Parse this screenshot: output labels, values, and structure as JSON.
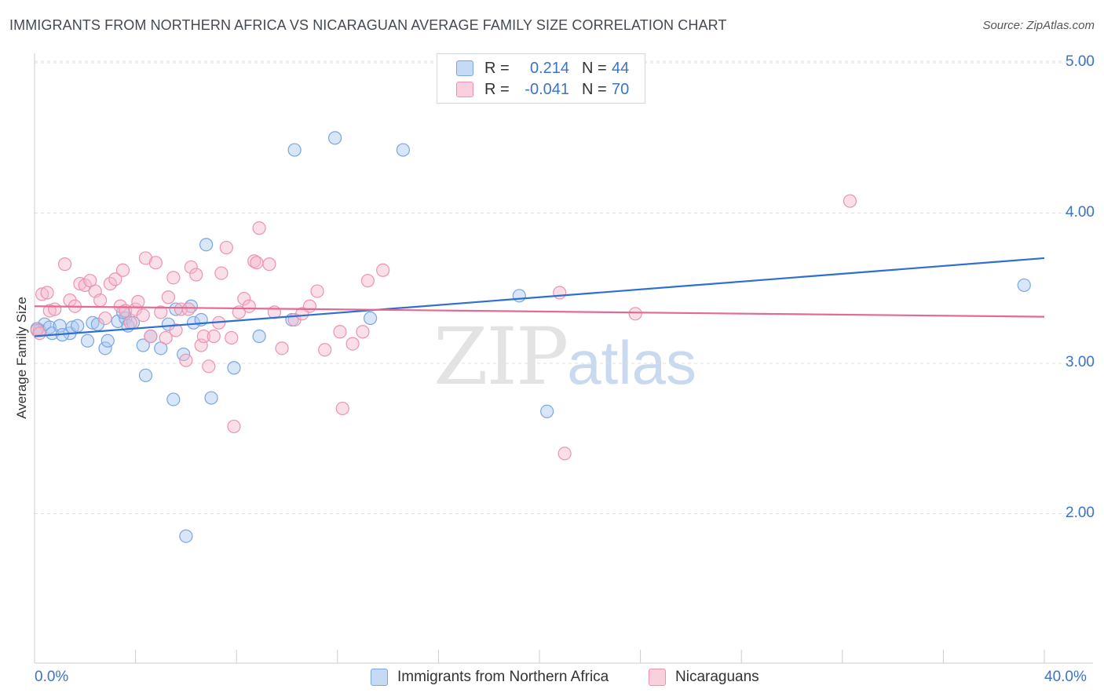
{
  "header": {
    "title": "IMMIGRANTS FROM NORTHERN AFRICA VS NICARAGUAN AVERAGE FAMILY SIZE CORRELATION CHART",
    "source": "Source: ZipAtlas.com"
  },
  "watermark": {
    "zip": "ZIP",
    "atlas": "atlas"
  },
  "legend": {
    "r_label": "R =",
    "n_label": "N =",
    "rows": [
      {
        "r": "0.214",
        "n": "44",
        "color": "#a9c8f0"
      },
      {
        "r": "-0.041",
        "n": "70",
        "color": "#f6b8cb"
      }
    ]
  },
  "colors": {
    "blue_fill": "#a9c8f0",
    "blue_line": "#2f6fcf",
    "pink_fill": "#f6b8cb",
    "pink_line": "#e46a92",
    "axis_text": "#3b73c8"
  },
  "chart_data": {
    "type": "scatter",
    "xlabel": "",
    "ylabel": "Average Family Size",
    "xlim": [
      0,
      40
    ],
    "ylim": [
      1.2,
      5.1
    ],
    "x_tick_labels": [
      {
        "value": 0,
        "label": "0.0%"
      },
      {
        "value": 40,
        "label": "40.0%"
      }
    ],
    "y_ticks": [
      {
        "value": 2.0,
        "label": "2.00"
      },
      {
        "value": 3.0,
        "label": "3.00"
      },
      {
        "value": 4.0,
        "label": "4.00"
      },
      {
        "value": 5.0,
        "label": "5.00"
      }
    ],
    "grid": "horizontal dashed",
    "series": [
      {
        "name": "Immigrants from Northern Africa",
        "color": "#a9c8f0",
        "trend": {
          "x": [
            0,
            40
          ],
          "y": [
            3.18,
            3.7
          ]
        },
        "points": [
          [
            0.2,
            3.22
          ],
          [
            0.4,
            3.26
          ],
          [
            0.6,
            3.24
          ],
          [
            0.7,
            3.2
          ],
          [
            1.0,
            3.25
          ],
          [
            1.4,
            3.2
          ],
          [
            1.5,
            3.24
          ],
          [
            1.7,
            3.25
          ],
          [
            2.1,
            3.15
          ],
          [
            2.3,
            3.27
          ],
          [
            2.5,
            3.26
          ],
          [
            2.8,
            3.1
          ],
          [
            2.9,
            3.15
          ],
          [
            3.3,
            3.28
          ],
          [
            3.6,
            3.3
          ],
          [
            3.5,
            3.34
          ],
          [
            3.7,
            3.25
          ],
          [
            3.9,
            3.27
          ],
          [
            4.3,
            3.12
          ],
          [
            4.4,
            2.92
          ],
          [
            4.6,
            3.18
          ],
          [
            5.0,
            3.1
          ],
          [
            5.3,
            3.26
          ],
          [
            5.5,
            2.76
          ],
          [
            5.6,
            3.36
          ],
          [
            5.9,
            3.06
          ],
          [
            6.0,
            1.85
          ],
          [
            6.2,
            3.38
          ],
          [
            6.3,
            3.27
          ],
          [
            6.6,
            3.29
          ],
          [
            6.8,
            3.79
          ],
          [
            7.0,
            2.77
          ],
          [
            7.9,
            2.97
          ],
          [
            8.9,
            3.18
          ],
          [
            10.2,
            3.29
          ],
          [
            10.3,
            4.42
          ],
          [
            11.9,
            4.5
          ],
          [
            13.3,
            3.3
          ],
          [
            14.6,
            4.42
          ],
          [
            19.2,
            3.45
          ],
          [
            20.3,
            2.68
          ],
          [
            39.2,
            3.52
          ],
          [
            0.1,
            3.23
          ],
          [
            1.1,
            3.19
          ]
        ]
      },
      {
        "name": "Nicaraguans",
        "color": "#f6b8cb",
        "trend": {
          "x": [
            0,
            40
          ],
          "y": [
            3.38,
            3.31
          ]
        },
        "points": [
          [
            0.1,
            3.22
          ],
          [
            0.3,
            3.46
          ],
          [
            0.5,
            3.47
          ],
          [
            0.6,
            3.35
          ],
          [
            0.8,
            3.36
          ],
          [
            1.2,
            3.66
          ],
          [
            1.4,
            3.42
          ],
          [
            1.6,
            3.38
          ],
          [
            1.8,
            3.53
          ],
          [
            2.0,
            3.52
          ],
          [
            2.2,
            3.55
          ],
          [
            2.4,
            3.48
          ],
          [
            2.6,
            3.42
          ],
          [
            2.8,
            3.3
          ],
          [
            3.0,
            3.53
          ],
          [
            3.2,
            3.56
          ],
          [
            3.4,
            3.38
          ],
          [
            3.5,
            3.62
          ],
          [
            3.6,
            3.35
          ],
          [
            3.8,
            3.27
          ],
          [
            4.0,
            3.36
          ],
          [
            4.1,
            3.41
          ],
          [
            4.3,
            3.32
          ],
          [
            4.4,
            3.7
          ],
          [
            4.6,
            3.18
          ],
          [
            4.8,
            3.67
          ],
          [
            5.0,
            3.34
          ],
          [
            5.2,
            3.17
          ],
          [
            5.3,
            3.44
          ],
          [
            5.5,
            3.57
          ],
          [
            5.6,
            3.22
          ],
          [
            5.8,
            3.36
          ],
          [
            6.0,
            3.02
          ],
          [
            6.1,
            3.36
          ],
          [
            6.2,
            3.64
          ],
          [
            6.4,
            3.59
          ],
          [
            6.6,
            3.12
          ],
          [
            6.7,
            3.18
          ],
          [
            6.9,
            2.98
          ],
          [
            7.1,
            3.18
          ],
          [
            7.3,
            3.27
          ],
          [
            7.4,
            3.6
          ],
          [
            7.6,
            3.77
          ],
          [
            7.8,
            3.17
          ],
          [
            7.9,
            2.58
          ],
          [
            8.1,
            3.34
          ],
          [
            8.3,
            3.43
          ],
          [
            8.5,
            3.38
          ],
          [
            8.7,
            3.68
          ],
          [
            8.8,
            3.67
          ],
          [
            8.9,
            3.9
          ],
          [
            9.3,
            3.66
          ],
          [
            9.5,
            3.34
          ],
          [
            9.8,
            3.1
          ],
          [
            10.3,
            3.29
          ],
          [
            10.6,
            3.33
          ],
          [
            10.9,
            3.38
          ],
          [
            11.2,
            3.48
          ],
          [
            11.5,
            3.09
          ],
          [
            12.1,
            3.21
          ],
          [
            12.2,
            2.7
          ],
          [
            12.6,
            3.13
          ],
          [
            13.0,
            3.21
          ],
          [
            13.2,
            3.55
          ],
          [
            13.8,
            3.62
          ],
          [
            20.8,
            3.47
          ],
          [
            21.0,
            2.4
          ],
          [
            23.8,
            3.33
          ],
          [
            32.3,
            4.08
          ],
          [
            0.2,
            3.2
          ]
        ]
      }
    ]
  },
  "bottom_legend": [
    {
      "label": "Immigrants from Northern Africa",
      "color": "#a9c8f0"
    },
    {
      "label": "Nicaraguans",
      "color": "#f6b8cb"
    }
  ]
}
